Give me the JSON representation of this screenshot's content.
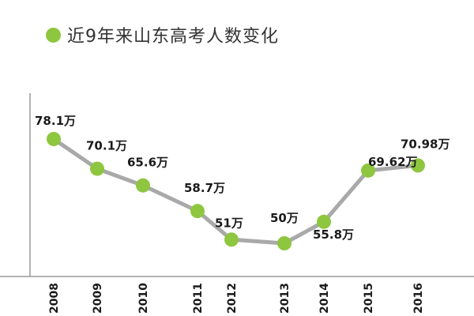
{
  "title": "近9年来山东高考人数变化",
  "colors": {
    "marker": "#8ec63f",
    "line": "#a9a9a9",
    "axis": "#9a9a9a",
    "text": "#1a1a1a"
  },
  "chart_data": {
    "type": "line",
    "title": "近9年来山东高考人数变化",
    "xlabel": "",
    "ylabel": "",
    "categories": [
      "2008",
      "2009",
      "2010",
      "2011",
      "2012",
      "2013",
      "2014",
      "2015",
      "2016"
    ],
    "series": [
      {
        "values": [
          78.1,
          70.1,
          65.6,
          58.7,
          51,
          50,
          55.8,
          69.62,
          70.98
        ]
      }
    ],
    "data_labels": [
      "78.1万",
      "70.1万",
      "65.6万",
      "58.7万",
      "51万",
      "50万",
      "55.8万",
      "69.62万",
      "70.98万"
    ],
    "grid": false,
    "legend": "none",
    "tick_orientation": "vertical"
  }
}
